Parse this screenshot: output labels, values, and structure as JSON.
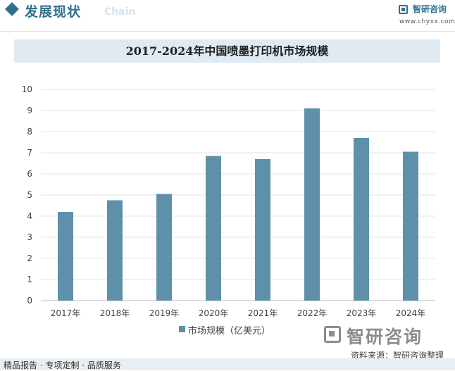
{
  "header": {
    "title": "发展现状",
    "subtitle": "Chain",
    "brand_name": "智研咨询",
    "brand_url": "www.chyxx.com"
  },
  "chart_data": {
    "type": "bar",
    "title": "2017-2024年中国喷墨打印机市场规模",
    "categories": [
      "2017年",
      "2018年",
      "2019年",
      "2020年",
      "2021年",
      "2022年",
      "2023年",
      "2024年"
    ],
    "series": [
      {
        "name": "市场规模（亿美元）",
        "values": [
          4.2,
          4.75,
          5.05,
          6.85,
          6.7,
          9.1,
          7.7,
          7.05
        ]
      }
    ],
    "ylim": [
      0,
      10
    ],
    "yticks": [
      "0",
      "1",
      "2",
      "3",
      "4",
      "5",
      "6",
      "7",
      "8",
      "9",
      "10"
    ],
    "grid": true,
    "legend": "bottom",
    "bar_color": "#5e91a9"
  },
  "footer": {
    "brand": "智研咨询",
    "source": "资料来源：智研咨询整理",
    "tagline": "精品报告 · 专项定制 · 品质服务"
  }
}
